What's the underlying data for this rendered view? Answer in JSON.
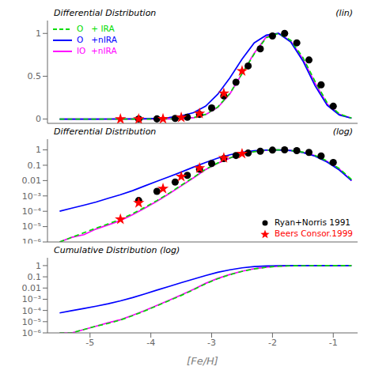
{
  "chart_data": [
    {
      "type": "line",
      "title": "Differential Distribution",
      "annotations": [
        "(lin)"
      ],
      "xlim": [
        -5.7,
        -0.6
      ],
      "xticks": [
        -5,
        -4,
        -3,
        -2,
        -1
      ],
      "ylim": [
        -0.05,
        1.15
      ],
      "yticks": [
        0,
        0.5,
        1
      ],
      "tick_labels": "y",
      "grid": false,
      "legend": "upper left",
      "series": [
        {
          "name": "O   + IRA",
          "type": "line",
          "color": "#00dd00",
          "line_style": "dashed",
          "x": [
            -5.5,
            -5.3,
            -5.1,
            -4.9,
            -4.7,
            -4.5,
            -4.3,
            -4.1,
            -3.9,
            -3.7,
            -3.5,
            -3.3,
            -3.1,
            -2.9,
            -2.7,
            -2.5,
            -2.3,
            -2.1,
            -1.9,
            -1.7,
            -1.5,
            -1.3,
            -1.1,
            -0.9,
            -0.7
          ],
          "values": [
            1e-06,
            2e-06,
            4e-06,
            8e-06,
            1.5e-05,
            3e-05,
            7e-05,
            0.00018,
            0.0005,
            0.0015,
            0.005,
            0.016,
            0.055,
            0.14,
            0.3,
            0.53,
            0.76,
            0.95,
            1.0,
            0.92,
            0.72,
            0.44,
            0.19,
            0.06,
            0.012
          ]
        },
        {
          "name": "O   +nIRA",
          "type": "line",
          "color": "#0000ff",
          "line_style": "solid",
          "x": [
            -5.5,
            -5.3,
            -5.1,
            -4.9,
            -4.7,
            -4.5,
            -4.3,
            -4.1,
            -3.9,
            -3.7,
            -3.5,
            -3.3,
            -3.1,
            -2.9,
            -2.7,
            -2.5,
            -2.3,
            -2.1,
            -1.9,
            -1.7,
            -1.5,
            -1.3,
            -1.1,
            -0.9,
            -0.7
          ],
          "values": [
            0.0001,
            0.00016,
            0.00025,
            0.0004,
            0.0007,
            0.0012,
            0.0022,
            0.0045,
            0.009,
            0.018,
            0.036,
            0.075,
            0.15,
            0.29,
            0.48,
            0.7,
            0.89,
            0.98,
            1.0,
            0.9,
            0.68,
            0.39,
            0.16,
            0.048,
            0.01
          ]
        },
        {
          "name": "IO  +nIRA",
          "type": "line",
          "color": "#ff00ff",
          "line_style": "solid",
          "x": [
            -5.5,
            -5.3,
            -5.1,
            -4.9,
            -4.7,
            -4.5,
            -4.3,
            -4.1,
            -3.9,
            -3.7,
            -3.5,
            -3.3,
            -3.1,
            -2.9,
            -2.7,
            -2.5,
            -2.3,
            -2.1,
            -1.9,
            -1.7,
            -1.5,
            -1.3,
            -1.1,
            -0.9,
            -0.7
          ],
          "values": [
            1e-06,
            2e-06,
            3e-06,
            7e-06,
            1.3e-05,
            2.5e-05,
            6e-05,
            0.00016,
            0.00045,
            0.0014,
            0.0045,
            0.015,
            0.052,
            0.135,
            0.295,
            0.53,
            0.77,
            0.96,
            1.0,
            0.91,
            0.7,
            0.42,
            0.175,
            0.055,
            0.01
          ]
        },
        {
          "type": "scatter",
          "color": "#000000",
          "marker": "circle",
          "x": [
            -4.2,
            -3.9,
            -3.6,
            -3.4,
            -3.2,
            -3.0,
            -2.8,
            -2.6,
            -2.4,
            -2.2,
            -2.0,
            -1.8,
            -1.6,
            -1.4,
            -1.2,
            -1.0
          ],
          "values": [
            0.0005,
            0.002,
            0.008,
            0.022,
            0.055,
            0.13,
            0.27,
            0.43,
            0.62,
            0.82,
            0.97,
            1.0,
            0.89,
            0.69,
            0.4,
            0.15
          ]
        },
        {
          "type": "scatter",
          "color": "#ff0000",
          "marker": "star",
          "x": [
            -4.5,
            -4.2,
            -3.8,
            -3.5,
            -3.2,
            -2.8,
            -2.5
          ],
          "values": [
            3e-05,
            0.00035,
            0.003,
            0.018,
            0.065,
            0.3,
            0.56
          ]
        }
      ]
    },
    {
      "type": "line",
      "title": "Differential Distribution",
      "annotations": [
        "(log)"
      ],
      "log": "y",
      "xlim": [
        -5.7,
        -0.6
      ],
      "xticks": [
        -5,
        -4,
        -3,
        -2,
        -1
      ],
      "ylim": [
        1e-06,
        5
      ],
      "yticks": [
        1,
        0.1,
        0.01,
        {
          "value": 0.001,
          "label": "10⁻³"
        },
        {
          "value": 0.0001,
          "label": "10⁻⁴"
        },
        {
          "value": 1e-05,
          "label": "10⁻⁵"
        },
        {
          "value": 1e-06,
          "label": "10⁻⁶"
        }
      ],
      "tick_labels": "y",
      "grid": false,
      "legend": "lower right",
      "series": [
        {
          "type": "line",
          "color": "#00dd00",
          "line_style": "dashed",
          "x": [
            -5.5,
            -5.3,
            -5.1,
            -4.9,
            -4.7,
            -4.5,
            -4.3,
            -4.1,
            -3.9,
            -3.7,
            -3.5,
            -3.3,
            -3.1,
            -2.9,
            -2.7,
            -2.5,
            -2.3,
            -2.1,
            -1.9,
            -1.7,
            -1.5,
            -1.3,
            -1.1,
            -0.9,
            -0.7
          ],
          "values": [
            1e-06,
            2e-06,
            4e-06,
            8e-06,
            1.5e-05,
            3e-05,
            7e-05,
            0.00018,
            0.0005,
            0.0015,
            0.005,
            0.016,
            0.055,
            0.14,
            0.3,
            0.53,
            0.76,
            0.95,
            1.0,
            0.92,
            0.72,
            0.44,
            0.19,
            0.06,
            0.012
          ]
        },
        {
          "type": "line",
          "color": "#0000ff",
          "line_style": "solid",
          "x": [
            -5.5,
            -5.3,
            -5.1,
            -4.9,
            -4.7,
            -4.5,
            -4.3,
            -4.1,
            -3.9,
            -3.7,
            -3.5,
            -3.3,
            -3.1,
            -2.9,
            -2.7,
            -2.5,
            -2.3,
            -2.1,
            -1.9,
            -1.7,
            -1.5,
            -1.3,
            -1.1,
            -0.9,
            -0.7
          ],
          "values": [
            0.0001,
            0.00016,
            0.00025,
            0.0004,
            0.0007,
            0.0012,
            0.0022,
            0.0045,
            0.009,
            0.018,
            0.036,
            0.075,
            0.15,
            0.29,
            0.48,
            0.7,
            0.89,
            0.98,
            1.0,
            0.9,
            0.68,
            0.39,
            0.16,
            0.048,
            0.01
          ]
        },
        {
          "type": "line",
          "color": "#ff00ff",
          "line_style": "solid",
          "x": [
            -5.5,
            -5.3,
            -5.1,
            -4.9,
            -4.7,
            -4.5,
            -4.3,
            -4.1,
            -3.9,
            -3.7,
            -3.5,
            -3.3,
            -3.1,
            -2.9,
            -2.7,
            -2.5,
            -2.3,
            -2.1,
            -1.9,
            -1.7,
            -1.5,
            -1.3,
            -1.1,
            -0.9,
            -0.7
          ],
          "values": [
            1e-06,
            2e-06,
            3e-06,
            7e-06,
            1.3e-05,
            2.5e-05,
            6e-05,
            0.00016,
            0.00045,
            0.0014,
            0.0045,
            0.015,
            0.052,
            0.135,
            0.295,
            0.53,
            0.77,
            0.96,
            1.0,
            0.91,
            0.7,
            0.42,
            0.175,
            0.055,
            0.01
          ]
        },
        {
          "name": "Ryan+Norris 1991",
          "type": "scatter",
          "color": "#000000",
          "marker": "circle",
          "x": [
            -4.2,
            -3.9,
            -3.6,
            -3.4,
            -3.2,
            -3.0,
            -2.8,
            -2.6,
            -2.4,
            -2.2,
            -2.0,
            -1.8,
            -1.6,
            -1.4,
            -1.2,
            -1.0
          ],
          "values": [
            0.0005,
            0.002,
            0.008,
            0.022,
            0.055,
            0.13,
            0.27,
            0.43,
            0.62,
            0.82,
            0.97,
            1.0,
            0.89,
            0.69,
            0.4,
            0.15
          ]
        },
        {
          "name": "Beers Consor.1999",
          "type": "scatter",
          "color": "#ff0000",
          "marker": "star",
          "x": [
            -4.5,
            -4.2,
            -3.8,
            -3.5,
            -3.2,
            -2.8,
            -2.5
          ],
          "values": [
            3e-05,
            0.00035,
            0.003,
            0.018,
            0.065,
            0.3,
            0.56
          ]
        }
      ]
    },
    {
      "type": "line",
      "title": "Cumulative Distribution (log)",
      "xlabel": "[Fe/H]",
      "log": "y",
      "xlim": [
        -5.7,
        -0.6
      ],
      "xticks": [
        -5,
        -4,
        -3,
        -2,
        -1
      ],
      "ylim": [
        1e-06,
        5
      ],
      "yticks": [
        1,
        0.1,
        0.01,
        {
          "value": 0.001,
          "label": "10⁻³"
        },
        {
          "value": 0.0001,
          "label": "10⁻⁴"
        },
        {
          "value": 1e-05,
          "label": "10⁻⁵"
        },
        {
          "value": 1e-06,
          "label": "10⁻⁶"
        }
      ],
      "grid": false,
      "series": [
        {
          "type": "line",
          "color": "#00dd00",
          "line_style": "dashed",
          "x": [
            -5.5,
            -5.3,
            -5.1,
            -4.9,
            -4.7,
            -4.5,
            -4.3,
            -4.1,
            -3.9,
            -3.7,
            -3.5,
            -3.3,
            -3.1,
            -2.9,
            -2.7,
            -2.5,
            -2.3,
            -2.1,
            -1.9,
            -1.7,
            -1.5,
            -1.3,
            -1.1,
            -0.9,
            -0.7
          ],
          "values": [
            1e-06,
            1e-06,
            2e-06,
            4e-06,
            7e-06,
            1.4e-05,
            3.4e-05,
            9e-05,
            0.00026,
            0.00075,
            0.0022,
            0.007,
            0.024,
            0.068,
            0.155,
            0.305,
            0.51,
            0.71,
            0.87,
            0.95,
            0.982,
            0.996,
            0.999,
            1.0,
            1.0
          ]
        },
        {
          "type": "line",
          "color": "#0000ff",
          "line_style": "solid",
          "x": [
            -5.5,
            -5.3,
            -5.1,
            -4.9,
            -4.7,
            -4.5,
            -4.3,
            -4.1,
            -3.9,
            -3.7,
            -3.5,
            -3.3,
            -3.1,
            -2.9,
            -2.7,
            -2.5,
            -2.3,
            -2.1,
            -1.9,
            -1.7,
            -1.5,
            -1.3,
            -1.1,
            -0.9,
            -0.7
          ],
          "values": [
            6e-05,
            9.5e-05,
            0.00015,
            0.00024,
            0.0004,
            0.00072,
            0.0014,
            0.003,
            0.0065,
            0.014,
            0.03,
            0.062,
            0.13,
            0.25,
            0.42,
            0.63,
            0.82,
            0.94,
            0.985,
            0.998,
            1.0,
            1.0,
            1.0,
            1.0,
            1.0
          ]
        },
        {
          "type": "line",
          "color": "#ff00ff",
          "line_style": "solid",
          "x": [
            -5.5,
            -5.3,
            -5.1,
            -4.9,
            -4.7,
            -4.5,
            -4.3,
            -4.1,
            -3.9,
            -3.7,
            -3.5,
            -3.3,
            -3.1,
            -2.9,
            -2.7,
            -2.5,
            -2.3,
            -2.1,
            -1.9,
            -1.7,
            -1.5,
            -1.3,
            -1.1,
            -0.9,
            -0.7
          ],
          "values": [
            1e-06,
            1e-06,
            2e-06,
            4e-06,
            8e-06,
            1.5e-05,
            3.7e-05,
            9.7e-05,
            0.00028,
            0.00082,
            0.0024,
            0.0075,
            0.026,
            0.072,
            0.163,
            0.318,
            0.53,
            0.735,
            0.89,
            0.96,
            0.986,
            0.997,
            0.999,
            1.0,
            1.0
          ]
        }
      ]
    }
  ]
}
